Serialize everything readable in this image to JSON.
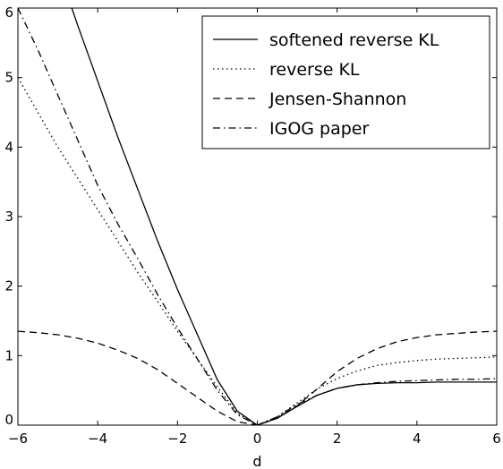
{
  "chart_data": {
    "type": "line",
    "xlabel": "d",
    "ylabel": "",
    "xlim": [
      -6,
      6
    ],
    "ylim": [
      0,
      6
    ],
    "xticks": [
      -6,
      -4,
      -2,
      0,
      2,
      4,
      6
    ],
    "yticks": [
      0,
      1,
      2,
      3,
      4,
      5,
      6
    ],
    "xtick_labels": [
      "−6",
      "−4",
      "−2",
      "0",
      "2",
      "4",
      "6"
    ],
    "ytick_labels": [
      "0",
      "1",
      "2",
      "3",
      "4",
      "5",
      "6"
    ],
    "grid": false,
    "legend_position": "top-right",
    "series": [
      {
        "name": "softened reverse KL",
        "style": "solid",
        "color": "#000000",
        "x": [
          -4.65,
          -4.5,
          -4.0,
          -3.5,
          -3.0,
          -2.5,
          -2.0,
          -1.5,
          -1.0,
          -0.5,
          0.0,
          0.5,
          1.0,
          1.5,
          2.0,
          2.5,
          3.0,
          3.5,
          4.0,
          4.5,
          5.0,
          5.5,
          6.0
        ],
        "y": [
          6.0,
          5.75,
          4.95,
          4.15,
          3.4,
          2.65,
          1.95,
          1.3,
          0.65,
          0.2,
          0.0,
          0.1,
          0.27,
          0.43,
          0.53,
          0.58,
          0.6,
          0.61,
          0.61,
          0.62,
          0.62,
          0.62,
          0.62
        ]
      },
      {
        "name": "reverse KL",
        "style": "dotted",
        "color": "#000000",
        "x": [
          -6.0,
          -5.5,
          -5.0,
          -4.5,
          -4.0,
          -3.5,
          -3.0,
          -2.5,
          -2.0,
          -1.5,
          -1.0,
          -0.5,
          0.0,
          0.5,
          1.0,
          1.5,
          2.0,
          2.5,
          3.0,
          3.5,
          4.0,
          4.5,
          5.0,
          5.5,
          6.0
        ],
        "y": [
          5.0,
          4.5,
          4.0,
          3.55,
          3.1,
          2.65,
          2.2,
          1.78,
          1.35,
          0.95,
          0.55,
          0.17,
          0.0,
          0.12,
          0.32,
          0.52,
          0.67,
          0.78,
          0.86,
          0.9,
          0.93,
          0.95,
          0.96,
          0.97,
          0.98
        ]
      },
      {
        "name": "Jensen-Shannon",
        "style": "dashed",
        "color": "#000000",
        "x": [
          -6.0,
          -5.5,
          -5.0,
          -4.5,
          -4.0,
          -3.5,
          -3.0,
          -2.5,
          -2.0,
          -1.5,
          -1.0,
          -0.5,
          0.0,
          0.5,
          1.0,
          1.5,
          2.0,
          2.5,
          3.0,
          3.5,
          4.0,
          4.5,
          5.0,
          5.5,
          6.0
        ],
        "y": [
          1.35,
          1.33,
          1.3,
          1.25,
          1.18,
          1.08,
          0.96,
          0.8,
          0.6,
          0.4,
          0.2,
          0.05,
          0.0,
          0.1,
          0.28,
          0.52,
          0.77,
          0.96,
          1.1,
          1.2,
          1.26,
          1.3,
          1.32,
          1.34,
          1.35
        ]
      },
      {
        "name": "IGOG paper",
        "style": "dashdot",
        "color": "#000000",
        "x": [
          -6.0,
          -5.5,
          -5.0,
          -4.5,
          -4.0,
          -3.5,
          -3.0,
          -2.5,
          -2.0,
          -1.5,
          -1.0,
          -0.5,
          0.0,
          0.5,
          1.0,
          1.5,
          2.0,
          2.5,
          3.0,
          3.5,
          4.0,
          4.5,
          5.0,
          5.5,
          6.0
        ],
        "y": [
          6.0,
          5.4,
          4.75,
          4.1,
          3.45,
          2.9,
          2.4,
          1.88,
          1.4,
          0.95,
          0.5,
          0.15,
          0.0,
          0.12,
          0.3,
          0.43,
          0.53,
          0.58,
          0.61,
          0.63,
          0.64,
          0.65,
          0.66,
          0.66,
          0.67
        ]
      }
    ]
  }
}
